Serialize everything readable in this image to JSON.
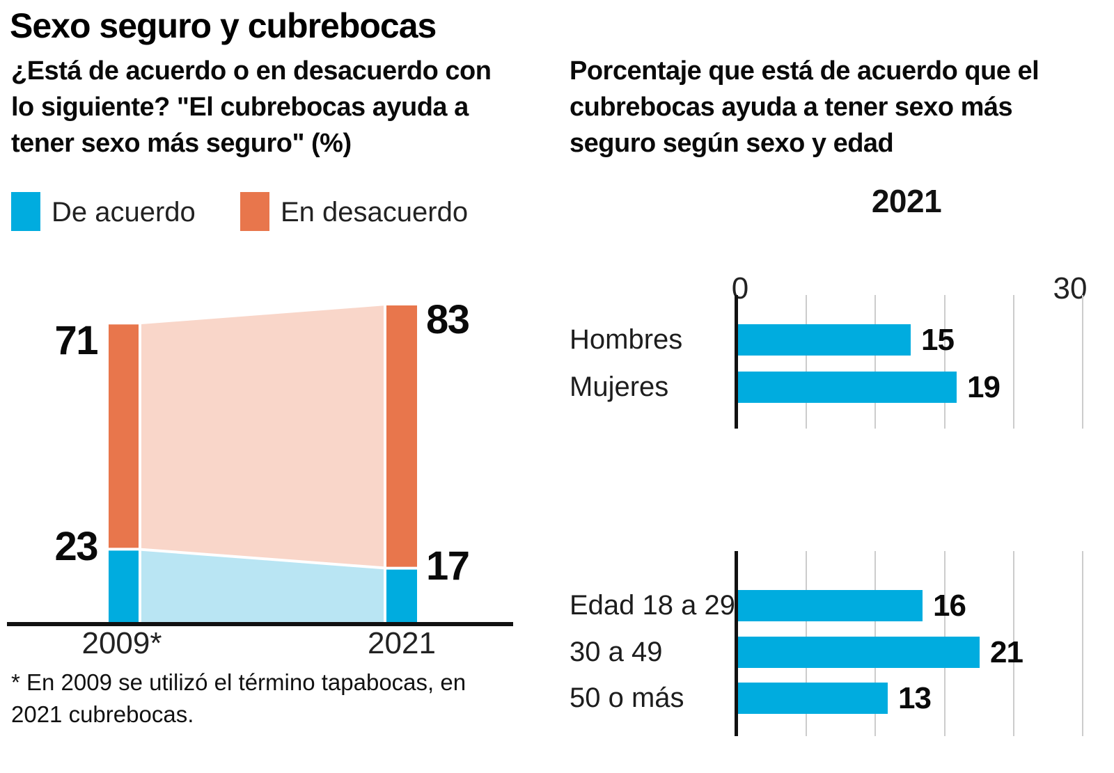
{
  "colors": {
    "agree_blue": "#00ACDF",
    "disagree_orange": "#E8764C",
    "agree_light": "#B9E5F3",
    "disagree_light": "#F9D6C9",
    "grid": "#CCCCCC",
    "axis_black": "#111111"
  },
  "left": {
    "title": "Sexo seguro y cubrebocas",
    "subtitle_lines": [
      "¿Está de acuerdo o en desacuerdo con",
      "lo siguiente? \"El cubrebocas ayuda a",
      "tener sexo más seguro\" (%)"
    ],
    "legend": [
      {
        "label": "De acuerdo"
      },
      {
        "label": "En desacuerdo"
      }
    ],
    "footnote_lines": [
      "* En 2009 se utilizó el término tapabocas, en",
      "2021 cubrebocas."
    ]
  },
  "right": {
    "title_lines": [
      "Porcentaje que está de acuerdo que el",
      "cubrebocas ayuda a tener sexo más",
      "seguro según sexo y edad"
    ],
    "year_heading": "2021",
    "axis_min_label": "0",
    "axis_max_label": "30"
  },
  "chart_data": [
    {
      "type": "area",
      "title": "¿Está de acuerdo o en desacuerdo con lo siguiente? \"El cubrebocas ayuda a tener sexo más seguro\" (%)",
      "categories": [
        "2009*",
        "2021"
      ],
      "series": [
        {
          "name": "De acuerdo",
          "values": [
            23,
            17
          ]
        },
        {
          "name": "En desacuerdo",
          "values": [
            71,
            83
          ]
        }
      ],
      "ylim": [
        0,
        100
      ]
    },
    {
      "type": "bar",
      "title": "2021",
      "orientation": "horizontal",
      "categories": [
        "Hombres",
        "Mujeres"
      ],
      "values": [
        15,
        19
      ],
      "xlim": [
        0,
        30
      ],
      "gridline_values": [
        6,
        12,
        18,
        24,
        30
      ]
    },
    {
      "type": "bar",
      "orientation": "horizontal",
      "categories": [
        "Edad 18 a 29",
        "30 a 49",
        "50 o más"
      ],
      "values": [
        16,
        21,
        13
      ],
      "xlim": [
        0,
        30
      ],
      "gridline_values": [
        6,
        12,
        18,
        24,
        30
      ]
    }
  ]
}
